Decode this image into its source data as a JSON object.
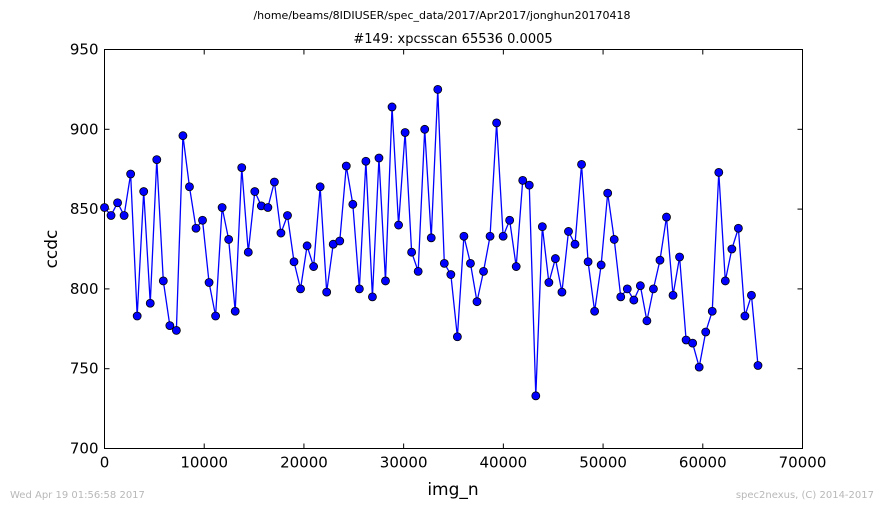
{
  "header": {
    "path": "/home/beams/8IDIUSER/spec_data/2017/Apr2017/jonghun20170418"
  },
  "footer": {
    "timestamp": "Wed Apr 19 01:56:58 2017",
    "credit": "spec2nexus, (C) 2014-2017"
  },
  "colors": {
    "series": "#0000ff",
    "marker_face": "#0000ff",
    "marker_edge": "#000000",
    "axes": "#000000",
    "footer_text": "#b8b8b8"
  },
  "chart_data": {
    "type": "line",
    "title": "#149: xpcsscan 65536 0.0005",
    "xlabel": "img_n",
    "ylabel": "ccdc",
    "xlim": [
      0,
      70000
    ],
    "ylim": [
      700,
      950
    ],
    "grid": false,
    "x_ticks": [
      0,
      10000,
      20000,
      30000,
      40000,
      50000,
      60000,
      70000
    ],
    "y_ticks": [
      700,
      750,
      800,
      850,
      900,
      950
    ],
    "x_tick_labels": [
      "0",
      "10000",
      "20000",
      "30000",
      "40000",
      "50000",
      "60000",
      "70000"
    ],
    "y_tick_labels": [
      "700",
      "750",
      "800",
      "850",
      "900",
      "950"
    ],
    "series": [
      {
        "marker": "circle",
        "x": [
          0,
          655,
          1311,
          1966,
          2621,
          3277,
          3932,
          4588,
          5243,
          5898,
          6554,
          7209,
          7864,
          8520,
          9175,
          9830,
          10486,
          11141,
          11796,
          12452,
          13107,
          13763,
          14418,
          15073,
          15729,
          16384,
          17039,
          17695,
          18350,
          19005,
          19661,
          20316,
          20972,
          21627,
          22282,
          22938,
          23593,
          24248,
          24904,
          25559,
          26214,
          26870,
          27525,
          28180,
          28836,
          29491,
          30147,
          30802,
          31457,
          32113,
          32768,
          33423,
          34079,
          34734,
          35389,
          36045,
          36700,
          37356,
          38011,
          38666,
          39322,
          39977,
          40632,
          41288,
          41943,
          42598,
          43254,
          43909,
          44564,
          45220,
          45875,
          46531,
          47186,
          47841,
          48497,
          49152,
          49807,
          50463,
          51118,
          51773,
          52429,
          53084,
          53740,
          54395,
          55050,
          55706,
          56361,
          57016,
          57672,
          58327,
          58982,
          59638,
          60293,
          60948,
          61604,
          62259,
          62915,
          63570,
          64225,
          64881,
          65536
        ],
        "y": [
          851,
          846,
          854,
          846,
          872,
          783,
          861,
          791,
          881,
          805,
          777,
          774,
          896,
          864,
          838,
          843,
          804,
          783,
          851,
          831,
          786,
          876,
          823,
          861,
          852,
          851,
          867,
          835,
          846,
          817,
          800,
          827,
          814,
          864,
          798,
          828,
          830,
          877,
          853,
          800,
          880,
          795,
          882,
          805,
          914,
          840,
          898,
          823,
          811,
          900,
          832,
          925,
          816,
          809,
          770,
          833,
          816,
          792,
          811,
          833,
          904,
          833,
          843,
          814,
          868,
          865,
          733,
          839,
          804,
          819,
          798,
          836,
          828,
          878,
          817,
          786,
          815,
          860,
          831,
          795,
          800,
          793,
          802,
          780,
          800,
          818,
          845,
          796,
          820,
          768,
          766,
          751,
          773,
          786,
          873,
          805,
          825,
          838,
          783,
          796,
          752
        ]
      }
    ]
  }
}
